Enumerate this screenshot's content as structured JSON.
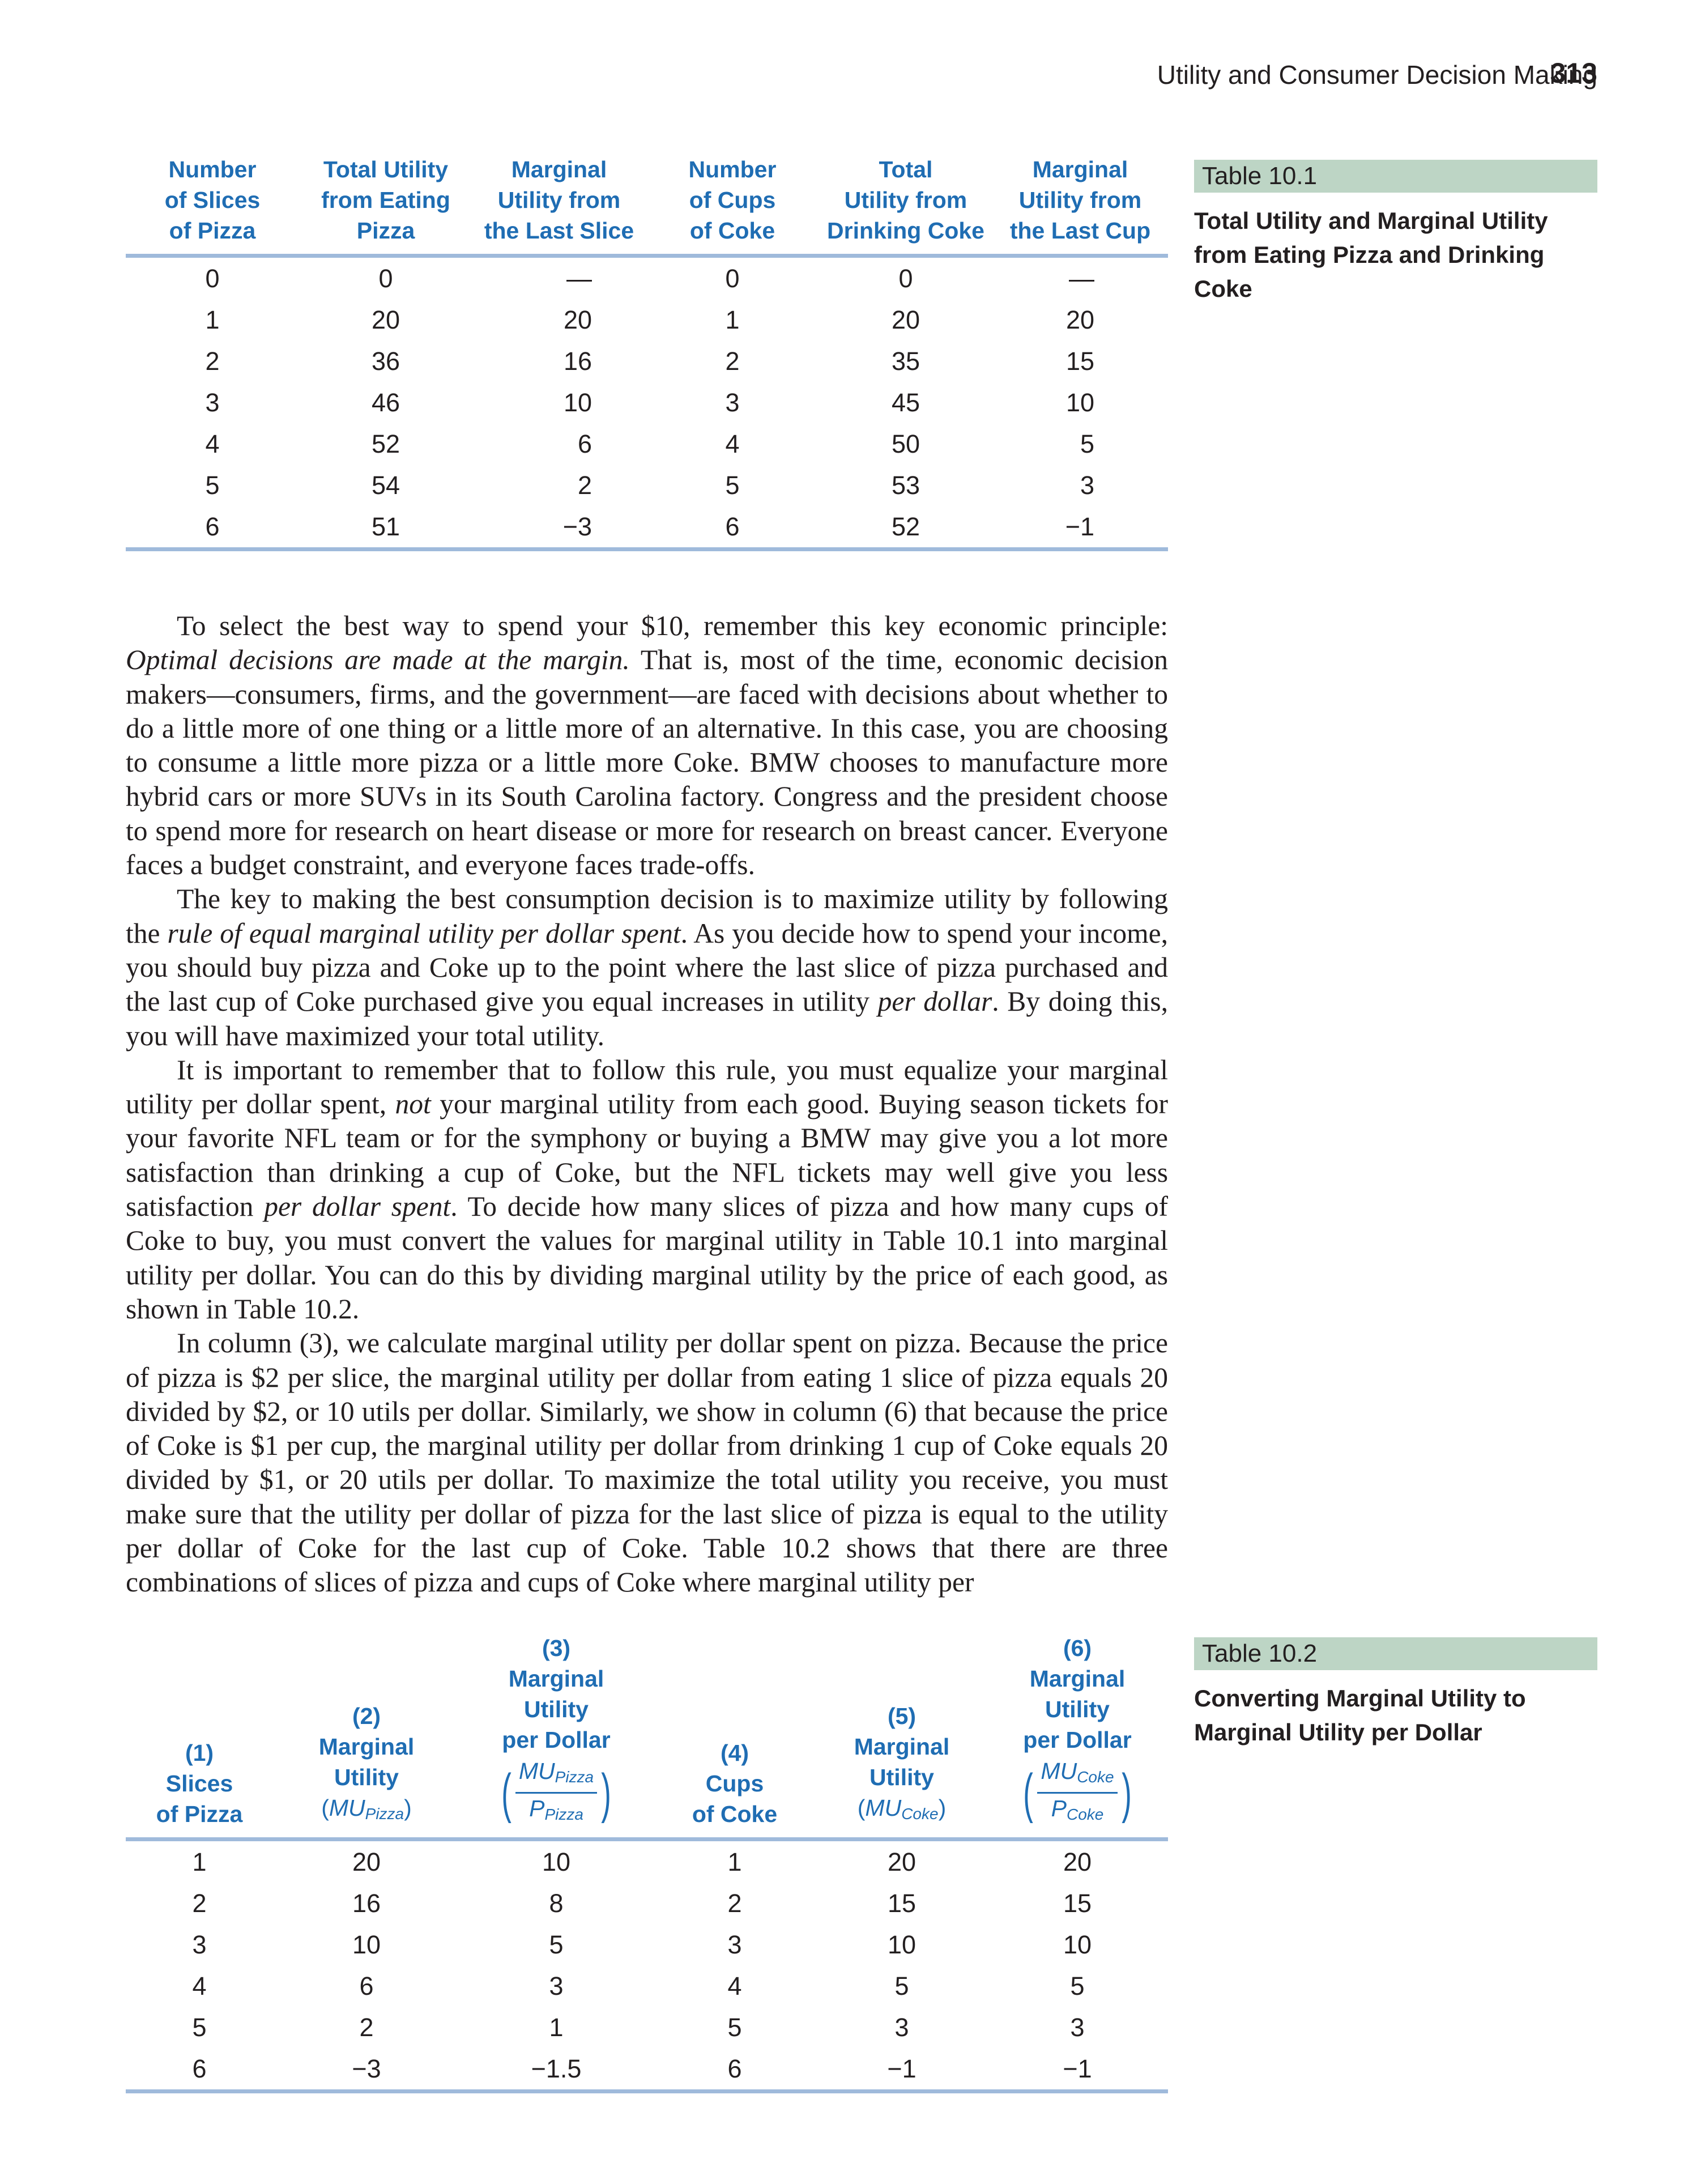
{
  "header": {
    "running_title": "Utility and Consumer Decision Making",
    "page_number": "313"
  },
  "table1": {
    "label": "Table 10.1",
    "title": "Total Utility and Marginal Utility from Eating Pizza and Drinking Coke",
    "headers": [
      [
        "Number",
        "of Slices",
        "of Pizza"
      ],
      [
        "Total Utility",
        "from Eating",
        "Pizza"
      ],
      [
        "Marginal",
        "Utility from",
        "the Last Slice"
      ],
      [
        "Number",
        "of Cups",
        "of Coke"
      ],
      [
        "Total",
        "Utility from",
        "Drinking Coke"
      ],
      [
        "Marginal",
        "Utility from",
        "the Last Cup"
      ]
    ],
    "rows": [
      [
        "0",
        "0",
        "—",
        "0",
        "0",
        "—"
      ],
      [
        "1",
        "20",
        "20",
        "1",
        "20",
        "20"
      ],
      [
        "2",
        "36",
        "16",
        "2",
        "35",
        "15"
      ],
      [
        "3",
        "46",
        "10",
        "3",
        "45",
        "10"
      ],
      [
        "4",
        "52",
        "6",
        "4",
        "50",
        "5"
      ],
      [
        "5",
        "54",
        "2",
        "5",
        "53",
        "3"
      ],
      [
        "6",
        "51",
        "−3",
        "6",
        "52",
        "−1"
      ]
    ]
  },
  "body": {
    "p1": {
      "a": "To select the best way to spend your $10, remember this key economic principle: ",
      "em": "Optimal decisions are made at the margin.",
      "b": " That is, most of the time, economic decision makers—consumers, firms, and the government—are faced with decisions about whether to do a little more of one thing or a little more of an alternative. In this case, you are choosing to consume a little more pizza or a little more Coke. BMW chooses to manufacture more hybrid cars or more SUVs in its South Carolina factory. Congress and the president choose to spend more for research on heart disease or more for research on breast cancer. Everyone faces a budget constraint, and everyone faces trade-offs."
    },
    "p2": {
      "a": "The key to making the best consumption decision is to maximize utility by following the ",
      "em1": "rule of equal marginal utility per dollar spent",
      "b": ". As you decide how to spend your income, you should buy pizza and Coke up to the point where the last slice of pizza purchased and the last cup of Coke purchased give you equal increases in utility ",
      "em2": "per dollar",
      "c": ". By doing this, you will have maximized your total utility."
    },
    "p3": {
      "a": "It is important to remember that to follow this rule, you must equalize your marginal utility per dollar spent, ",
      "em1": "not",
      "b": " your marginal utility from each good. Buying season tickets for your favorite NFL team or for the symphony or buying a BMW may give you a lot more satisfaction than drinking a cup of Coke, but the NFL tickets may well give you less satisfaction ",
      "em2": "per dollar spent",
      "c": ". To decide how many slices of pizza and how many cups of Coke to buy, you must convert the values for marginal utility in Table 10.1 into marginal utility per dollar. You can do this by dividing marginal utility by the price of each good, as shown in Table 10.2."
    },
    "p4": "In column (3), we calculate marginal utility per dollar spent on pizza. Because the price of pizza is $2 per slice, the marginal utility per dollar from eating 1 slice of pizza equals 20 divided by $2, or 10 utils per dollar. Similarly, we show in column (6) that because the price of Coke is $1 per cup, the marginal utility per dollar from drinking 1 cup of Coke equals 20 divided by $1, or 20 utils per dollar. To maximize the total utility you receive, you must make sure that the utility per dollar of pizza for the last slice of pizza is equal to the utility per dollar of Coke for the last cup of Coke. Table 10.2 shows that there are three combinations of slices of pizza and cups of Coke where marginal utility per"
  },
  "table2": {
    "label": "Table 10.2",
    "title": "Converting Marginal Utility to Marginal Utility per Dollar",
    "h1": [
      "(1)",
      "Slices",
      "of Pizza"
    ],
    "h2": [
      "(2)",
      "Marginal",
      "Utility",
      "MU",
      "Pizza"
    ],
    "h3": [
      "(3)",
      "Marginal",
      "Utility",
      "per Dollar",
      "MU",
      "Pizza",
      "P",
      "Pizza"
    ],
    "h4": [
      "(4)",
      "Cups",
      "of Coke"
    ],
    "h5": [
      "(5)",
      "Marginal",
      "Utility",
      "MU",
      "Coke"
    ],
    "h6": [
      "(6)",
      "Marginal",
      "Utility",
      "per Dollar",
      "MU",
      "Coke",
      "P",
      "Coke"
    ],
    "rows": [
      [
        "1",
        "20",
        "10",
        "1",
        "20",
        "20"
      ],
      [
        "2",
        "16",
        "8",
        "2",
        "15",
        "15"
      ],
      [
        "3",
        "10",
        "5",
        "3",
        "10",
        "10"
      ],
      [
        "4",
        "6",
        "3",
        "4",
        "5",
        "5"
      ],
      [
        "5",
        "2",
        "1",
        "5",
        "3",
        "3"
      ],
      [
        "6",
        "−3",
        "−1.5",
        "6",
        "−1",
        "−1"
      ]
    ]
  }
}
